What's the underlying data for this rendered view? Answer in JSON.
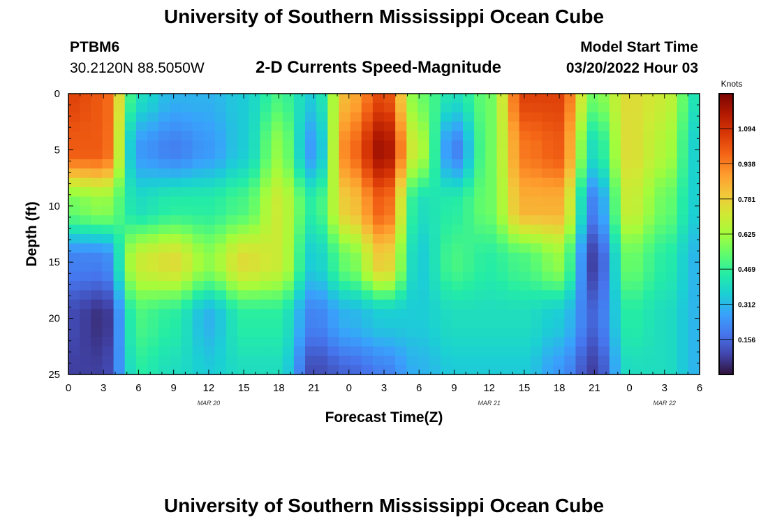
{
  "header": {
    "title": "University of Southern Mississippi Ocean Cube",
    "station": "PTBM6",
    "coordinates": "30.2120N  88.5050W",
    "subtitle": "2-D Currents Speed-Magnitude",
    "model_start_label": "Model Start Time",
    "model_start_value": "03/20/2022 Hour 03"
  },
  "footer": {
    "title": "University of Southern Mississippi Ocean Cube"
  },
  "chart_data": {
    "type": "heatmap",
    "title": "2-D Currents Speed-Magnitude",
    "xlabel": "Forecast Time(Z)",
    "ylabel": "Depth (ft)",
    "x_tick_labels": [
      "0",
      "3",
      "6",
      "9",
      "12",
      "15",
      "18",
      "21",
      "0",
      "3",
      "6",
      "9",
      "12",
      "15",
      "18",
      "21",
      "0",
      "3",
      "6"
    ],
    "x_range_hours": [
      0,
      54
    ],
    "date_labels": [
      {
        "label": "MAR 20",
        "hour": 12
      },
      {
        "label": "MAR 21",
        "hour": 36
      },
      {
        "label": "MAR 22",
        "hour": 51
      }
    ],
    "y_tick_labels": [
      "0",
      "5",
      "10",
      "15",
      "20",
      "25"
    ],
    "ylim": [
      0,
      25
    ],
    "y_inverted": true,
    "colorbar": {
      "label": "Knots",
      "tick_labels": [
        "1.094",
        "0.938",
        "0.781",
        "0.625",
        "0.469",
        "0.312",
        "0.156"
      ],
      "range": [
        0,
        1.25
      ],
      "colormap": [
        "#30123b",
        "#4145ab",
        "#4675ed",
        "#39a2fc",
        "#1bcfd4",
        "#24eca6",
        "#61fc6c",
        "#a4fc3b",
        "#d1e834",
        "#f3c63a",
        "#fe9b2d",
        "#f36315",
        "#d93806",
        "#b11901",
        "#7a0403"
      ]
    },
    "time_hours": [
      0,
      3,
      6,
      9,
      12,
      15,
      18,
      21,
      24,
      27,
      30,
      33,
      36,
      39,
      42,
      45,
      48,
      51,
      54
    ],
    "depth_ft": [
      0,
      5,
      10,
      15,
      20,
      25
    ],
    "values": [
      [
        1.05,
        1.0,
        0.4,
        0.3,
        0.3,
        0.35,
        0.5,
        0.35,
        0.85,
        1.05,
        0.55,
        0.4,
        0.55,
        1.05,
        1.05,
        0.55,
        0.75,
        0.7,
        0.4
      ],
      [
        1.0,
        1.0,
        0.25,
        0.2,
        0.25,
        0.35,
        0.6,
        0.25,
        0.95,
        1.2,
        0.65,
        0.2,
        0.55,
        0.95,
        1.0,
        0.4,
        0.75,
        0.65,
        0.35
      ],
      [
        0.55,
        0.6,
        0.4,
        0.45,
        0.45,
        0.5,
        0.7,
        0.45,
        0.8,
        1.0,
        0.4,
        0.45,
        0.55,
        0.85,
        0.85,
        0.2,
        0.7,
        0.55,
        0.35
      ],
      [
        0.2,
        0.2,
        0.7,
        0.75,
        0.6,
        0.75,
        0.7,
        0.35,
        0.55,
        0.8,
        0.35,
        0.5,
        0.45,
        0.5,
        0.6,
        0.08,
        0.55,
        0.45,
        0.3
      ],
      [
        0.1,
        0.05,
        0.5,
        0.45,
        0.3,
        0.45,
        0.45,
        0.2,
        0.3,
        0.35,
        0.35,
        0.4,
        0.4,
        0.4,
        0.35,
        0.15,
        0.45,
        0.4,
        0.3
      ],
      [
        0.08,
        0.08,
        0.45,
        0.4,
        0.35,
        0.4,
        0.4,
        0.1,
        0.15,
        0.2,
        0.3,
        0.35,
        0.35,
        0.35,
        0.25,
        0.08,
        0.4,
        0.4,
        0.3
      ]
    ],
    "grid": false
  }
}
